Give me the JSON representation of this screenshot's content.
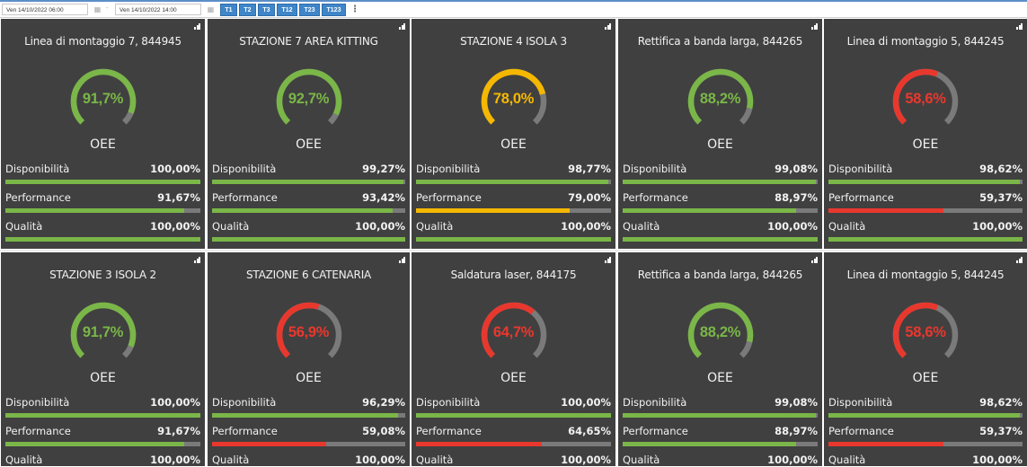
{
  "toolbar": {
    "date_from": "Ven 14/10/2022 06:00",
    "date_to": "Ven 14/10/2022 14:00",
    "separator": "-",
    "calendar_icon": "calendar-icon",
    "shift_buttons": [
      "T1",
      "T2",
      "T3",
      "T12",
      "T23",
      "T123"
    ],
    "more_icon": "kebab-menu-icon",
    "more_label": "⋮"
  },
  "colors": {
    "good": "#7ab648",
    "warn": "#f5b800",
    "bad": "#e8382e",
    "track": "#7a7a7a",
    "card": "#404040"
  },
  "labels": {
    "oee": "OEE",
    "availability": "Disponibilità",
    "performance": "Performance",
    "quality": "Qualità"
  },
  "cards": [
    {
      "title": "Linea di montaggio 7, 844945",
      "oee": 91.7,
      "oee_text": "91,7%",
      "status": "good",
      "availability": 100.0,
      "availability_text": "100,00%",
      "availability_status": "good",
      "performance": 91.67,
      "performance_text": "91,67%",
      "performance_status": "good",
      "quality": 100.0,
      "quality_text": "100,00%",
      "quality_status": "good"
    },
    {
      "title": "STAZIONE 7 AREA KITTING",
      "oee": 92.7,
      "oee_text": "92,7%",
      "status": "good",
      "availability": 99.27,
      "availability_text": "99,27%",
      "availability_status": "good",
      "performance": 93.42,
      "performance_text": "93,42%",
      "performance_status": "good",
      "quality": 100.0,
      "quality_text": "100,00%",
      "quality_status": "good"
    },
    {
      "title": "STAZIONE 4 ISOLA 3",
      "oee": 78.0,
      "oee_text": "78,0%",
      "status": "warn",
      "availability": 98.77,
      "availability_text": "98,77%",
      "availability_status": "good",
      "performance": 79.0,
      "performance_text": "79,00%",
      "performance_status": "warn",
      "quality": 100.0,
      "quality_text": "100,00%",
      "quality_status": "good"
    },
    {
      "title": "Rettifica a banda larga, 844265",
      "oee": 88.2,
      "oee_text": "88,2%",
      "status": "good",
      "availability": 99.08,
      "availability_text": "99,08%",
      "availability_status": "good",
      "performance": 88.97,
      "performance_text": "88,97%",
      "performance_status": "good",
      "quality": 100.0,
      "quality_text": "100,00%",
      "quality_status": "good"
    },
    {
      "title": "Linea di montaggio 5, 844245",
      "oee": 58.6,
      "oee_text": "58,6%",
      "status": "bad",
      "availability": 98.62,
      "availability_text": "98,62%",
      "availability_status": "good",
      "performance": 59.37,
      "performance_text": "59,37%",
      "performance_status": "bad",
      "quality": 100.0,
      "quality_text": "100,00%",
      "quality_status": "good"
    },
    {
      "title": "STAZIONE 3 ISOLA 2",
      "oee": 91.7,
      "oee_text": "91,7%",
      "status": "good",
      "availability": 100.0,
      "availability_text": "100,00%",
      "availability_status": "good",
      "performance": 91.67,
      "performance_text": "91,67%",
      "performance_status": "good",
      "quality": 100.0,
      "quality_text": "100,00%",
      "quality_status": "good"
    },
    {
      "title": "STAZIONE 6 CATENARIA",
      "oee": 56.9,
      "oee_text": "56,9%",
      "status": "bad",
      "availability": 96.29,
      "availability_text": "96,29%",
      "availability_status": "good",
      "performance": 59.08,
      "performance_text": "59,08%",
      "performance_status": "bad",
      "quality": 100.0,
      "quality_text": "100,00%",
      "quality_status": "good"
    },
    {
      "title": "Saldatura laser, 844175",
      "oee": 64.7,
      "oee_text": "64,7%",
      "status": "bad",
      "availability": 100.0,
      "availability_text": "100,00%",
      "availability_status": "good",
      "performance": 64.65,
      "performance_text": "64,65%",
      "performance_status": "bad",
      "quality": 100.0,
      "quality_text": "100,00%",
      "quality_status": "good"
    },
    {
      "title": "Rettifica a banda larga, 844265",
      "oee": 88.2,
      "oee_text": "88,2%",
      "status": "good",
      "availability": 99.08,
      "availability_text": "99,08%",
      "availability_status": "good",
      "performance": 88.97,
      "performance_text": "88,97%",
      "performance_status": "good",
      "quality": 100.0,
      "quality_text": "100,00%",
      "quality_status": "good"
    },
    {
      "title": "Linea di montaggio 5, 844245",
      "oee": 58.6,
      "oee_text": "58,6%",
      "status": "bad",
      "availability": 98.62,
      "availability_text": "98,62%",
      "availability_status": "good",
      "performance": 59.37,
      "performance_text": "59,37%",
      "performance_status": "bad",
      "quality": 100.0,
      "quality_text": "100,00%",
      "quality_status": "good"
    }
  ]
}
